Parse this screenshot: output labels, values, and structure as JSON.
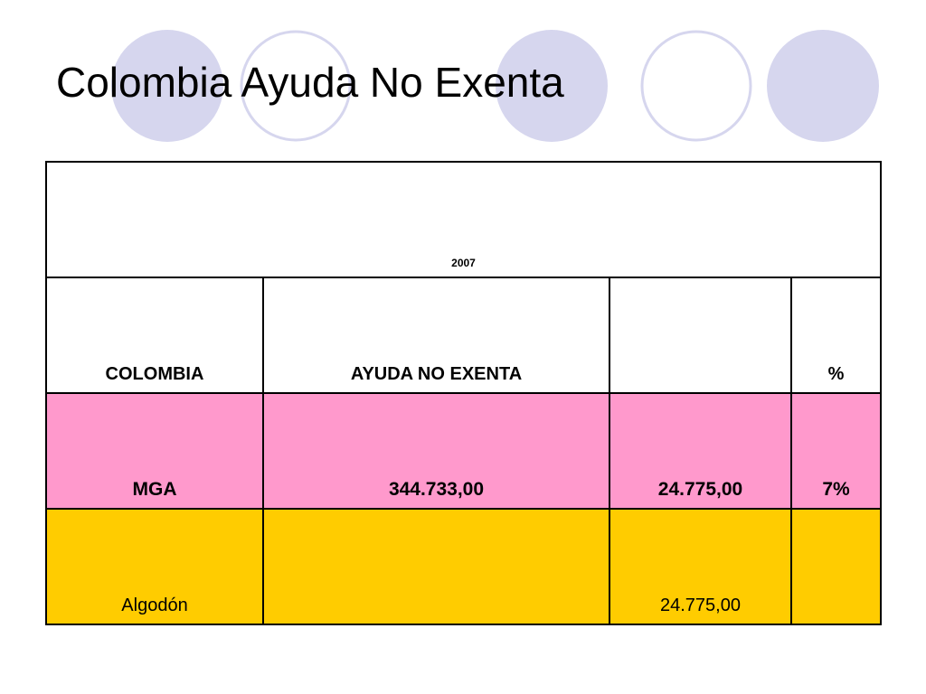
{
  "slide": {
    "title": "Colombia Ayuda No Exenta",
    "decoration_colors": {
      "filled_circle": "#d6d6ee",
      "outlined_circle": "#d6d6ee"
    }
  },
  "table": {
    "year_label": "2007",
    "header": [
      "COLOMBIA",
      "AYUDA NO EXENTA",
      "",
      "%"
    ],
    "rows": [
      {
        "name": "MGA",
        "cells": [
          "MGA",
          "344.733,00",
          "24.775,00",
          "7%"
        ],
        "color": "#ff99cc"
      },
      {
        "name": "Algodon",
        "cells": [
          "Algodón",
          "",
          "24.775,00",
          ""
        ],
        "color": "#ffcc00"
      }
    ]
  }
}
